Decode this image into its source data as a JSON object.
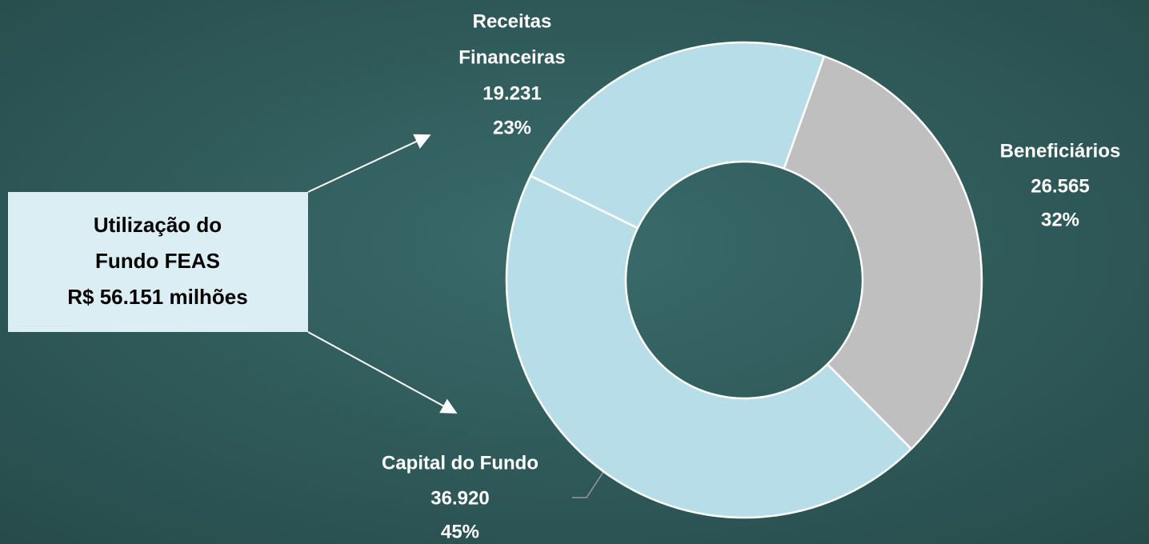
{
  "chart_data": {
    "type": "donut",
    "categories": [
      "Receitas Financeiras",
      "Beneficiários",
      "Capital do Fundo"
    ],
    "label_lines": [
      [
        "Receitas",
        "Financeiras"
      ],
      [
        "Beneficiários"
      ],
      [
        "Capital do Fundo"
      ]
    ],
    "values": [
      19231,
      26565,
      36920
    ],
    "value_labels": [
      "19.231",
      "26.565",
      "36.920"
    ],
    "percent_labels": [
      "23%",
      "32%",
      "45%"
    ],
    "colors": [
      "#b7dde8",
      "#bfbfbf",
      "#b7dde8"
    ],
    "annotation": [
      "Utilização do",
      "Fundo FEAS",
      "R$ 56.151 milhões"
    ]
  }
}
